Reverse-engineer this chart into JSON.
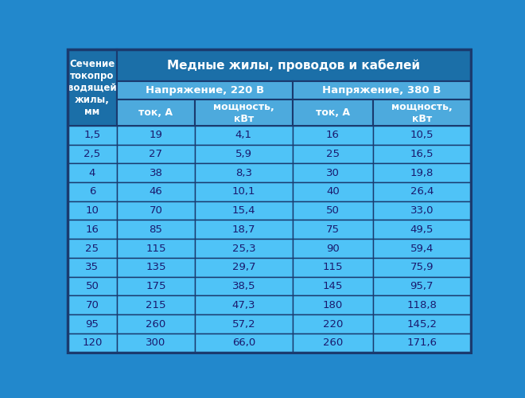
{
  "title": "Медные жилы, проводов и кабелей",
  "col0_header": "Сечение\nтокопро\nводящей\nжилы,\nмм",
  "sub_header1": "Напряжение, 220 В",
  "sub_header2": "Напряжение, 380 В",
  "col_headers": [
    "ток, А",
    "мощность,\nкВт",
    "ток, А",
    "мощность,\nкВт"
  ],
  "rows": [
    [
      "1,5",
      "19",
      "4,1",
      "16",
      "10,5"
    ],
    [
      "2,5",
      "27",
      "5,9",
      "25",
      "16,5"
    ],
    [
      "4",
      "38",
      "8,3",
      "30",
      "19,8"
    ],
    [
      "6",
      "46",
      "10,1",
      "40",
      "26,4"
    ],
    [
      "10",
      "70",
      "15,4",
      "50",
      "33,0"
    ],
    [
      "16",
      "85",
      "18,7",
      "75",
      "49,5"
    ],
    [
      "25",
      "115",
      "25,3",
      "90",
      "59,4"
    ],
    [
      "35",
      "135",
      "29,7",
      "115",
      "75,9"
    ],
    [
      "50",
      "175",
      "38,5",
      "145",
      "95,7"
    ],
    [
      "70",
      "215",
      "47,3",
      "180",
      "118,8"
    ],
    [
      "95",
      "260",
      "57,2",
      "220",
      "145,2"
    ],
    [
      "120",
      "300",
      "66,0",
      "260",
      "171,6"
    ]
  ],
  "header_dark_bg": "#1B6FA8",
  "header_light_bg": "#4DAADD",
  "cell_bg": "#4FC3F7",
  "border_color": "#1a3a6e",
  "text_color_dark": "#ffffff",
  "text_color_data": "#1a1a6e",
  "outer_bg": "#2288CC"
}
